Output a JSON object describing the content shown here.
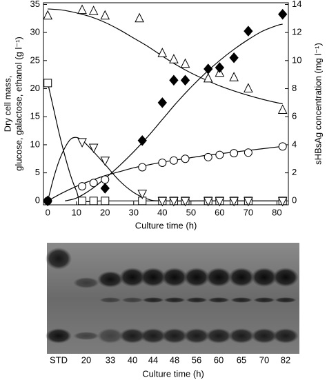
{
  "chart_data": {
    "type": "scatter",
    "xlabel": "Culture time (h)",
    "ylabel": [
      "Dry cell mass,",
      "glucose, galactose, ethanol (g l⁻¹)"
    ],
    "y2label": "sHBsAg concentration (mg l⁻¹)",
    "xlim": [
      -1.5,
      84
    ],
    "xticks": [
      0,
      10,
      20,
      30,
      40,
      50,
      60,
      70,
      80
    ],
    "ylim": [
      -0.7,
      35.3
    ],
    "yticks": [
      0,
      5,
      10,
      15,
      20,
      25,
      30,
      35
    ],
    "y2lim": [
      -0.28,
      14.12
    ],
    "y2ticks": [
      0,
      2,
      4,
      6,
      8,
      10,
      12,
      14
    ],
    "series": [
      {
        "marker": "triangle-up",
        "color": "#000",
        "x": [
          0,
          12,
          16,
          20,
          32,
          40,
          44,
          48,
          56,
          60,
          65,
          70,
          82
        ],
        "values": [
          33,
          34,
          33.8,
          33,
          32.5,
          26.3,
          25.2,
          24.4,
          21.8,
          22.8,
          22,
          20,
          16.2
        ]
      },
      {
        "marker": "square",
        "color": "#000",
        "x": [
          0,
          12,
          16,
          20,
          33,
          40,
          44,
          48,
          56,
          60,
          65,
          70,
          82
        ],
        "values": [
          21,
          0,
          0,
          0,
          0,
          0,
          0,
          0,
          0,
          0,
          0,
          0,
          0
        ]
      },
      {
        "marker": "triangle-down",
        "color": "#000",
        "x": [
          12,
          16,
          20,
          33,
          40,
          44,
          48,
          56,
          60,
          65,
          70,
          82
        ],
        "values": [
          10.5,
          9.5,
          7.2,
          1.3,
          0,
          0,
          0,
          0,
          0,
          0,
          0,
          0
        ]
      },
      {
        "marker": "circle",
        "color": "#000",
        "x": [
          0,
          12,
          16,
          20,
          33,
          40,
          44,
          48,
          56,
          60,
          65,
          70,
          82
        ],
        "values": [
          0,
          2.6,
          3.2,
          3.8,
          6,
          6.8,
          7.2,
          7.5,
          7.8,
          8.2,
          8.5,
          8.6,
          9.7
        ]
      },
      {
        "marker": "diamond",
        "color": "#000",
        "axis": "y2",
        "x": [
          0,
          20,
          33,
          40,
          44,
          48,
          56,
          60,
          65,
          70,
          82
        ],
        "values": [
          0,
          0.9,
          4.3,
          7,
          8.6,
          8.6,
          9.4,
          9.5,
          10.2,
          12.1,
          13.3
        ]
      },
      {
        "line": true,
        "color": "#000",
        "x": [
          0,
          5,
          10,
          15,
          20,
          25,
          30,
          35,
          40,
          45,
          50,
          55,
          60,
          65,
          70,
          75,
          80,
          82
        ],
        "values": [
          34.2,
          34,
          33.5,
          32.8,
          31.8,
          30.5,
          29,
          27.5,
          25.8,
          24.2,
          22.8,
          21.6,
          20.5,
          19.6,
          18.8,
          18.1,
          17.5,
          17.3
        ]
      },
      {
        "line": true,
        "color": "#000",
        "x": [
          0,
          2,
          4,
          6,
          8,
          10,
          12,
          20,
          40,
          60,
          82
        ],
        "values": [
          21,
          16.5,
          12,
          8,
          4.5,
          1.8,
          0,
          0,
          0,
          0,
          0
        ]
      },
      {
        "line": true,
        "color": "#000",
        "x": [
          0,
          2,
          4,
          6,
          8,
          10,
          12,
          15,
          20,
          25,
          30,
          35,
          40,
          60,
          82
        ],
        "values": [
          0,
          4,
          7.2,
          9.5,
          11,
          11.3,
          10.8,
          9.3,
          6.5,
          3.6,
          1.5,
          0.3,
          0,
          0,
          0
        ]
      },
      {
        "line": true,
        "color": "#000",
        "x": [
          0,
          5,
          10,
          15,
          20,
          25,
          30,
          35,
          40,
          45,
          50,
          55,
          60,
          65,
          70,
          75,
          80,
          82
        ],
        "values": [
          0,
          1.4,
          2.6,
          3.6,
          4.5,
          5.2,
          5.9,
          6.4,
          6.9,
          7.3,
          7.7,
          8.1,
          8.4,
          8.7,
          9,
          9.3,
          9.6,
          9.7
        ]
      },
      {
        "line": true,
        "color": "#000",
        "axis": "y2",
        "x": [
          6,
          10,
          15,
          20,
          25,
          30,
          35,
          40,
          45,
          50,
          55,
          60,
          65,
          70,
          75,
          80,
          82
        ],
        "values": [
          0,
          0.2,
          0.8,
          1.6,
          2.5,
          3.5,
          4.6,
          5.8,
          7,
          8.1,
          9.1,
          10,
          10.8,
          11.5,
          12.1,
          12.5,
          12.6
        ]
      }
    ]
  },
  "gel": {
    "lanes": [
      "STD",
      "20",
      "33",
      "40",
      "44",
      "48",
      "56",
      "60",
      "65",
      "70",
      "82"
    ],
    "xlabel": "Culture time (h)"
  }
}
